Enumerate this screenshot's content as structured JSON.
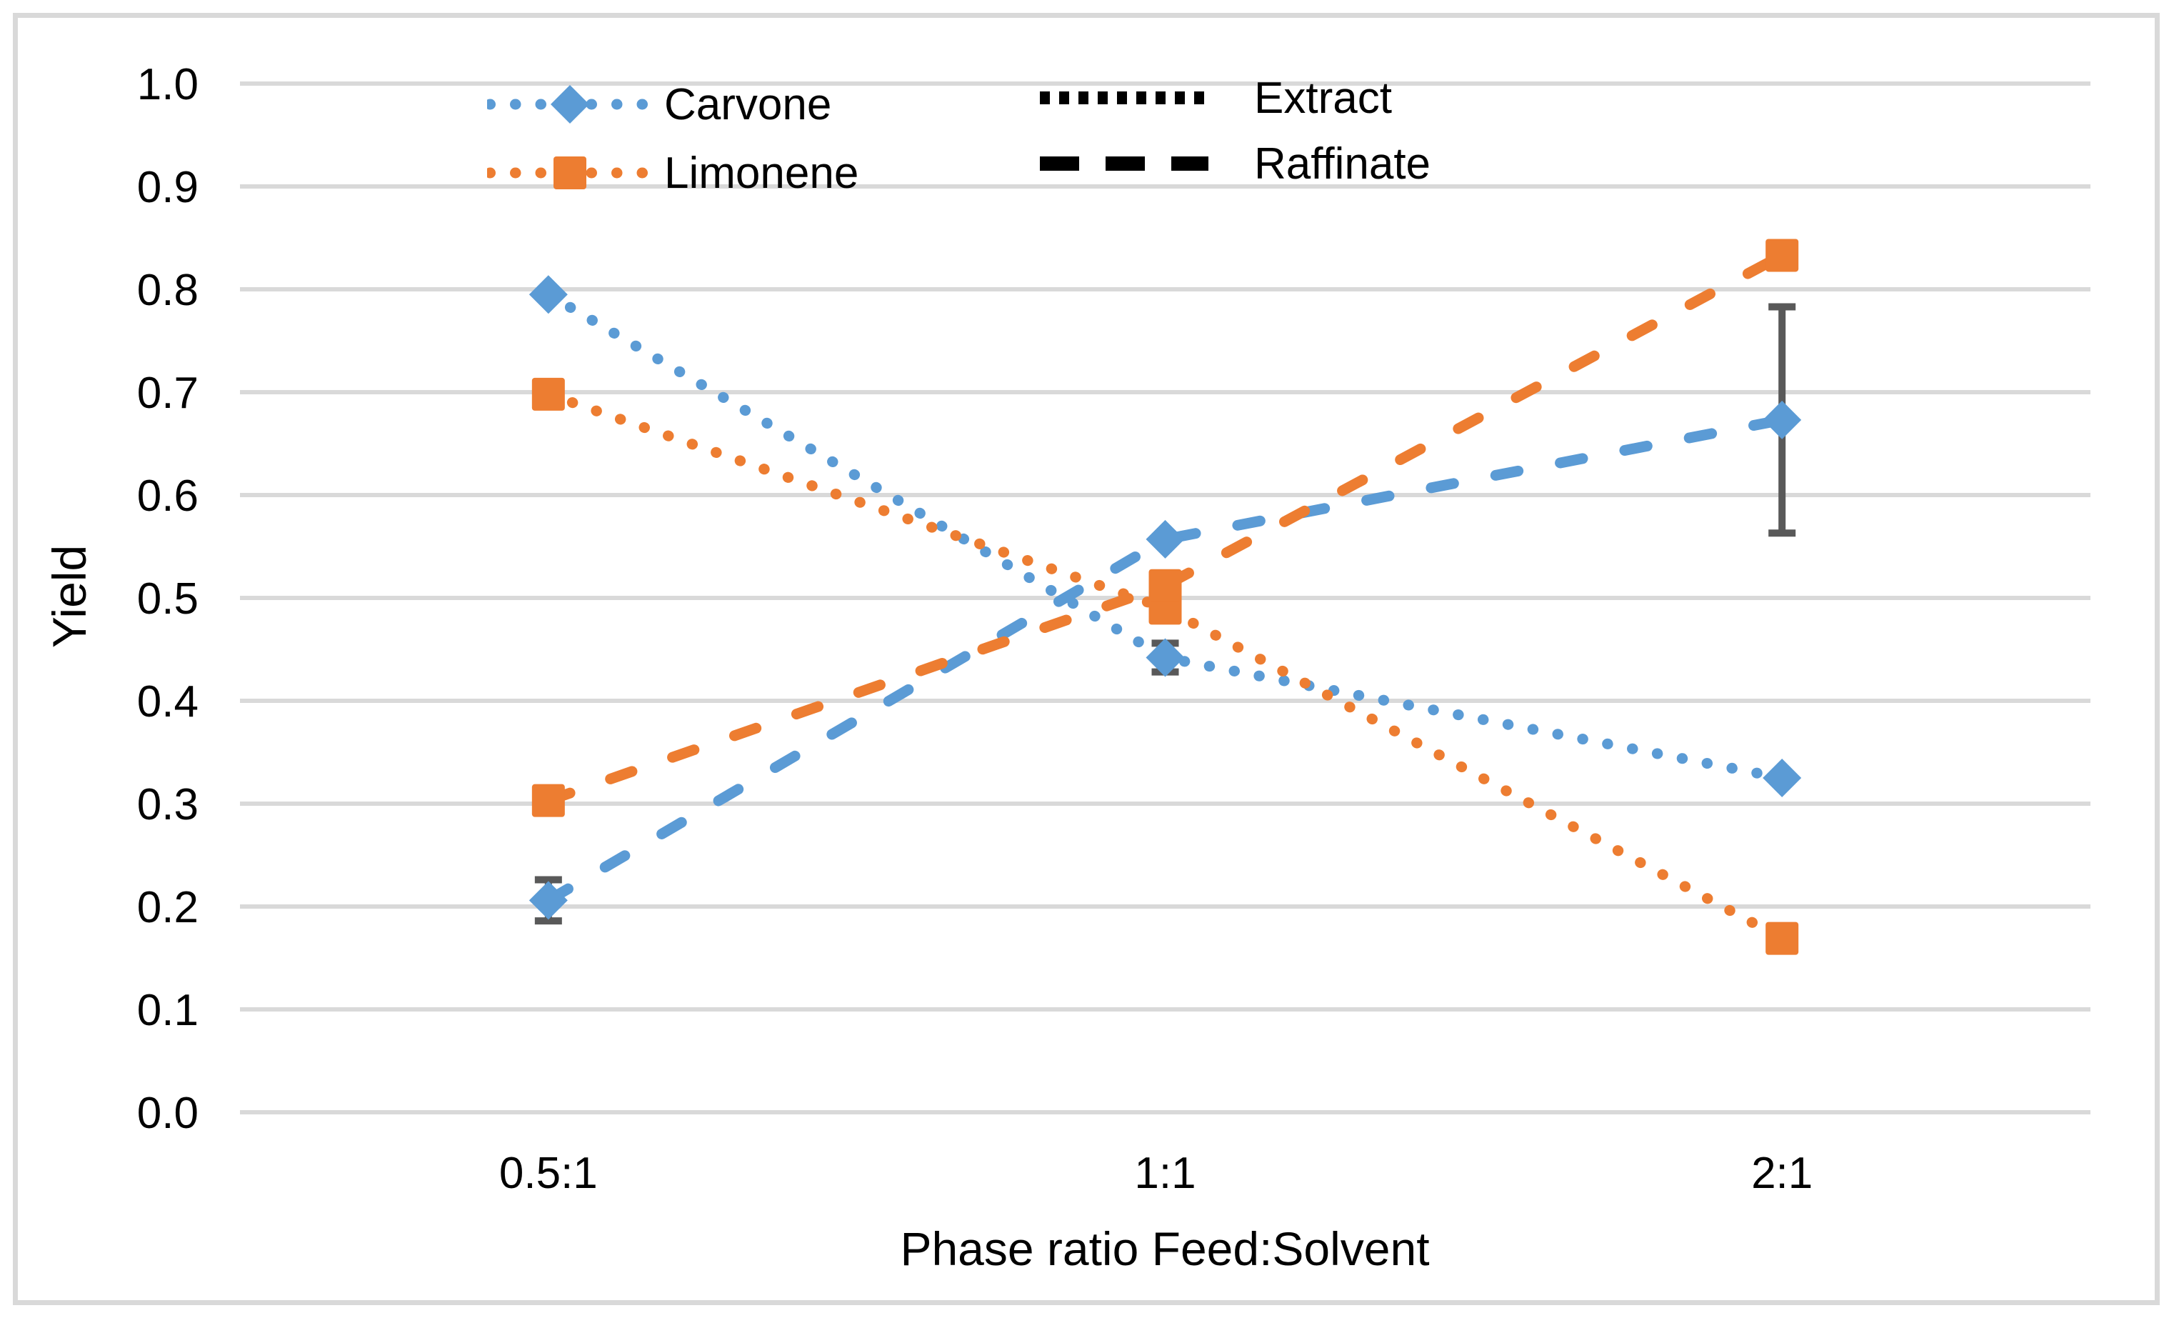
{
  "chart_data": {
    "type": "line",
    "title": "",
    "xlabel": "Phase ratio Feed:Solvent",
    "ylabel": "Yield",
    "categories": [
      "0.5:1",
      "1:1",
      "2:1"
    ],
    "ylim": [
      0.0,
      1.0
    ],
    "ytick_step": 0.1,
    "ytick_labels": [
      "0.0",
      "0.1",
      "0.2",
      "0.3",
      "0.4",
      "0.5",
      "0.6",
      "0.7",
      "0.8",
      "0.9",
      "1.0"
    ],
    "grid": "horizontal",
    "legend_position": "top-inside",
    "series": [
      {
        "name": "Carvone Extract",
        "compound": "Carvone",
        "phase": "Extract",
        "color": "#5B9BD5",
        "line": "dotted",
        "marker": "diamond",
        "values": [
          0.795,
          0.442,
          0.325
        ],
        "error": [
          null,
          0.014,
          null
        ]
      },
      {
        "name": "Carvone Raffinate",
        "compound": "Carvone",
        "phase": "Raffinate",
        "color": "#5B9BD5",
        "line": "dashed",
        "marker": "diamond",
        "values": [
          0.206,
          0.557,
          0.673
        ],
        "error": [
          0.02,
          null,
          0.11
        ]
      },
      {
        "name": "Limonene Extract",
        "compound": "Limonene",
        "phase": "Extract",
        "color": "#ED7D31",
        "line": "dotted",
        "marker": "square",
        "values": [
          0.698,
          0.49,
          0.169
        ],
        "error": [
          null,
          null,
          null
        ]
      },
      {
        "name": "Limonene Raffinate",
        "compound": "Limonene",
        "phase": "Raffinate",
        "color": "#ED7D31",
        "line": "dashed",
        "marker": "square",
        "values": [
          0.303,
          0.512,
          0.833
        ],
        "error": [
          null,
          null,
          null
        ]
      }
    ],
    "legend": {
      "compounds": [
        {
          "label": "Carvone",
          "color": "#5B9BD5",
          "marker": "diamond",
          "line": "dotted"
        },
        {
          "label": "Limonene",
          "color": "#ED7D31",
          "marker": "square",
          "line": "dotted"
        }
      ],
      "phases": [
        {
          "label": "Extract",
          "color": "#000000",
          "line": "dotted"
        },
        {
          "label": "Raffinate",
          "color": "#000000",
          "line": "dashed"
        }
      ]
    },
    "colors": {
      "gridline": "#D9D9D9",
      "error_bar": "#595959",
      "text": "#000000",
      "border": "#D9D9D9"
    }
  }
}
